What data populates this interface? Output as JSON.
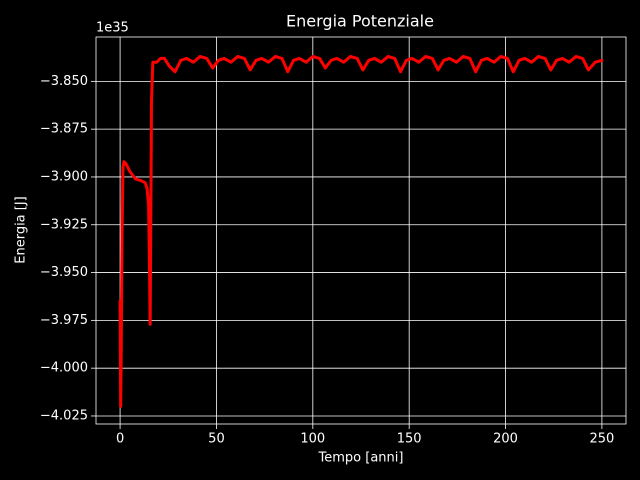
{
  "chart_data": {
    "type": "line",
    "title": "Energia Potenziale",
    "xlabel": "Tempo [anni]",
    "ylabel": "Energia [J]",
    "y_offset_label": "1e35",
    "grid": true,
    "xlim": [
      -12.5,
      262.5
    ],
    "ylim": [
      -4.0292,
      -3.8268
    ],
    "xticks": [
      0,
      50,
      100,
      150,
      200,
      250
    ],
    "yticks": [
      {
        "value": -3.85,
        "label": "−3.850"
      },
      {
        "value": -3.875,
        "label": "−3.875"
      },
      {
        "value": -3.9,
        "label": "−3.900"
      },
      {
        "value": -3.925,
        "label": "−3.925"
      },
      {
        "value": -3.95,
        "label": "−3.950"
      },
      {
        "value": -3.975,
        "label": "−3.975"
      },
      {
        "value": -4.0,
        "label": "−4.000"
      },
      {
        "value": -4.025,
        "label": "−4.025"
      }
    ],
    "series": [
      {
        "color": "#ff0000",
        "x": [
          0,
          0.3,
          0.6,
          1.0,
          1.5,
          2.0,
          3,
          5,
          8,
          11,
          13,
          14,
          14.8,
          15.3,
          15.6,
          15.9,
          16.3,
          17,
          19,
          21,
          23,
          25.5,
          28.5,
          31.5,
          34.5,
          38,
          41.5,
          45,
          48,
          51,
          54,
          57.5,
          61,
          64.5,
          67.5,
          70.5,
          73.5,
          77,
          80.5,
          84,
          87,
          90,
          93,
          96.5,
          100,
          103.5,
          106.5,
          109.5,
          112.5,
          116,
          119.5,
          123,
          126,
          129,
          132,
          135.5,
          139,
          142.5,
          145.5,
          148.5,
          151.5,
          155,
          158.5,
          162,
          165,
          168,
          171,
          174.5,
          178,
          181.5,
          184.5,
          187.5,
          190.5,
          194,
          197.5,
          201,
          204,
          207,
          210,
          213.5,
          217,
          220.5,
          223.5,
          226.5,
          229.5,
          233,
          236.5,
          240,
          243,
          246.5,
          250
        ],
        "values": [
          -3.965,
          -4.02,
          -3.99,
          -3.93,
          -3.895,
          -3.892,
          -3.893,
          -3.897,
          -3.901,
          -3.902,
          -3.903,
          -3.906,
          -3.915,
          -3.95,
          -3.977,
          -3.93,
          -3.86,
          -3.84,
          -3.84,
          -3.838,
          -3.838,
          -3.842,
          -3.845,
          -3.839,
          -3.838,
          -3.84,
          -3.837,
          -3.838,
          -3.843,
          -3.839,
          -3.838,
          -3.84,
          -3.837,
          -3.838,
          -3.844,
          -3.839,
          -3.838,
          -3.84,
          -3.837,
          -3.838,
          -3.845,
          -3.839,
          -3.838,
          -3.84,
          -3.837,
          -3.838,
          -3.843,
          -3.839,
          -3.838,
          -3.84,
          -3.837,
          -3.838,
          -3.844,
          -3.839,
          -3.838,
          -3.84,
          -3.837,
          -3.838,
          -3.845,
          -3.839,
          -3.838,
          -3.84,
          -3.837,
          -3.838,
          -3.844,
          -3.839,
          -3.838,
          -3.84,
          -3.837,
          -3.838,
          -3.845,
          -3.839,
          -3.838,
          -3.84,
          -3.837,
          -3.838,
          -3.845,
          -3.839,
          -3.838,
          -3.84,
          -3.837,
          -3.838,
          -3.844,
          -3.839,
          -3.838,
          -3.84,
          -3.837,
          -3.838,
          -3.844,
          -3.84,
          -3.839
        ]
      }
    ]
  }
}
